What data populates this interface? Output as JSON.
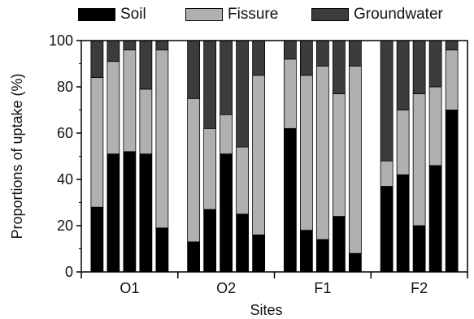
{
  "chart_data": {
    "type": "bar",
    "stacked": true,
    "xlabel": "Sites",
    "ylabel": "Proportions of uptake (%)",
    "ylim": [
      0,
      100
    ],
    "yticks": [
      "0",
      "20",
      "40",
      "60",
      "80",
      "100"
    ],
    "grid": false,
    "legend_position": "top",
    "groups": [
      {
        "label": "O1",
        "bars": 5
      },
      {
        "label": "O2",
        "bars": 5
      },
      {
        "label": "F1",
        "bars": 5
      },
      {
        "label": "F2",
        "bars": 5
      }
    ],
    "series": [
      {
        "name": "Soil",
        "color": "#000000",
        "values": [
          28,
          51,
          52,
          51,
          19,
          13,
          27,
          51,
          25,
          16,
          62,
          18,
          14,
          24,
          8,
          37,
          42,
          20,
          46,
          70
        ]
      },
      {
        "name": "Fissure",
        "color": "#b0b0b0",
        "values": [
          56,
          40,
          44,
          28,
          77,
          62,
          35,
          17,
          29,
          69,
          30,
          67,
          75,
          53,
          81,
          11,
          28,
          57,
          34,
          26
        ]
      },
      {
        "name": "Groundwater",
        "color": "#3c3c3c",
        "values": [
          16,
          9,
          4,
          21,
          4,
          25,
          38,
          32,
          46,
          15,
          8,
          15,
          11,
          23,
          11,
          52,
          30,
          23,
          20,
          4
        ]
      }
    ]
  }
}
